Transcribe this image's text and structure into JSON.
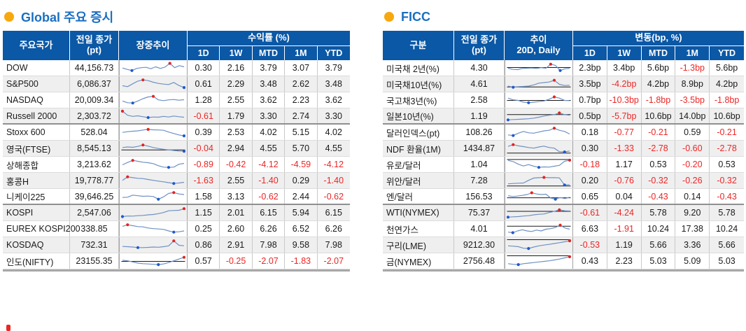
{
  "colors": {
    "header_bg": "#0a58a6",
    "title": "#1a6fc0",
    "bullet": "#f7a80c",
    "negative": "#ee2525",
    "spark_line": "#6e91c3",
    "spark_max_dot": "#e02424",
    "spark_min_dot": "#1f58d0",
    "spark_baseline": "#1a1a1a"
  },
  "footnote_mark": "",
  "sections": [
    {
      "id": "global",
      "title": "Global 주요 증시",
      "table": {
        "col_headers": {
          "label": "주요국가",
          "close": "전일 종가\n(pt)",
          "trend": "장중추이",
          "group": "수익률 (%)",
          "periods": [
            "1D",
            "1W",
            "MTD",
            "1M",
            "YTD"
          ]
        },
        "separator_after": [
          3,
          8
        ],
        "rows": [
          {
            "label": "DOW",
            "close": "44,156.73",
            "baseline": null,
            "spark": [
              52,
              40,
              30,
              48,
              55,
              58,
              46,
              62,
              48,
              60,
              92,
              55,
              72,
              62
            ],
            "values": [
              "0.30",
              "2.16",
              "3.79",
              "3.07",
              "3.79"
            ]
          },
          {
            "label": "S&P500",
            "close": "6,086.37",
            "baseline": null,
            "spark": [
              38,
              30,
              55,
              78,
              88,
              82,
              68,
              58,
              52,
              48,
              66,
              40,
              22
            ],
            "values": [
              "0.61",
              "2.29",
              "3.48",
              "2.62",
              "3.48"
            ]
          },
          {
            "label": "NASDAQ",
            "close": "20,009.34",
            "baseline": null,
            "spark": [
              45,
              30,
              28,
              45,
              65,
              80,
              85,
              55,
              48,
              55,
              58,
              52,
              56
            ],
            "values": [
              "1.28",
              "2.55",
              "3.62",
              "2.23",
              "3.62"
            ]
          },
          {
            "label": "Russell 2000",
            "close": "2,303.72",
            "baseline": null,
            "spark": [
              90,
              55,
              45,
              50,
              42,
              35,
              40,
              38,
              45,
              40,
              48,
              42,
              38
            ],
            "values": [
              "-0.61",
              "1.79",
              "3.30",
              "2.74",
              "3.30"
            ]
          },
          {
            "label": "Stoxx 600",
            "close": "528.04",
            "baseline": null,
            "spark": [
              52,
              58,
              62,
              65,
              72,
              78,
              74,
              73,
              70,
              55,
              42,
              30,
              22
            ],
            "values": [
              "0.39",
              "2.53",
              "4.02",
              "5.15",
              "4.02"
            ]
          },
          {
            "label": "영국(FTSE)",
            "close": "8,545.13",
            "baseline": 0.58,
            "spark": [
              60,
              65,
              62,
              70,
              82,
              72,
              60,
              52,
              45,
              40,
              35,
              30,
              28
            ],
            "values": [
              "-0.04",
              "2.94",
              "4.55",
              "5.70",
              "4.55"
            ]
          },
          {
            "label": "상해종합",
            "close": "3,213.62",
            "baseline": null,
            "spark": [
              50,
              70,
              88,
              80,
              72,
              68,
              60,
              42,
              30,
              28,
              30,
              55,
              62
            ],
            "values": [
              "-0.89",
              "-0.42",
              "-4.12",
              "-4.59",
              "-4.12"
            ]
          },
          {
            "label": "홍콩H",
            "close": "19,778.77",
            "baseline": null,
            "spark": [
              55,
              85,
              78,
              72,
              70,
              62,
              55,
              48,
              42,
              35,
              28,
              32,
              38
            ],
            "values": [
              "-1.63",
              "2.55",
              "-1.40",
              "0.29",
              "-1.40"
            ]
          },
          {
            "label": "니케이225",
            "close": "39,646.25",
            "baseline": null,
            "spark": [
              40,
              42,
              60,
              55,
              50,
              52,
              48,
              25,
              45,
              75,
              82,
              70,
              65
            ],
            "values": [
              "1.58",
              "3.13",
              "-0.62",
              "2.44",
              "-0.62"
            ]
          },
          {
            "label": "KOSPI",
            "close": "2,547.06",
            "baseline": null,
            "spark": [
              20,
              25,
              24,
              28,
              30,
              35,
              38,
              45,
              55,
              70,
              72,
              74,
              88
            ],
            "values": [
              "1.15",
              "2.01",
              "6.15",
              "5.94",
              "6.15"
            ]
          },
          {
            "label": "EUREX KOSPI200",
            "close": "338.85",
            "baseline": null,
            "spark": [
              75,
              88,
              80,
              72,
              70,
              60,
              55,
              52,
              48,
              35,
              25,
              28,
              35
            ],
            "values": [
              "0.25",
              "2.60",
              "6.26",
              "6.52",
              "6.26"
            ]
          },
          {
            "label": "KOSDAQ",
            "close": "732.31",
            "baseline": null,
            "spark": [
              40,
              38,
              35,
              30,
              30,
              32,
              35,
              33,
              38,
              45,
              88,
              50,
              46
            ],
            "values": [
              "0.86",
              "2.91",
              "7.98",
              "9.58",
              "7.98"
            ]
          },
          {
            "label": "인도(NIFTY)",
            "close": "23155.35",
            "baseline": 0.5,
            "spark": [
              60,
              55,
              45,
              35,
              30,
              28,
              25,
              22,
              28,
              40,
              55,
              70,
              85
            ],
            "values": [
              "0.57",
              "-0.25",
              "-2.07",
              "-1.83",
              "-2.07"
            ]
          }
        ]
      }
    },
    {
      "id": "ficc",
      "title": "FICC",
      "table": {
        "col_headers": {
          "label": "구분",
          "close": "전일 종가\n(pt)",
          "trend": "추이\n20D, Daily",
          "group": "변동(bp, %)",
          "periods": [
            "1D",
            "1W",
            "MTD",
            "1M",
            "YTD"
          ]
        },
        "separator_after": [
          3,
          8
        ],
        "rows": [
          {
            "label": "미국채 2년(%)",
            "close": "4.30",
            "baseline": 0.45,
            "spark": [
              50,
              40,
              38,
              48,
              50,
              52,
              48,
              55,
              50,
              85,
              75,
              30,
              45,
              48
            ],
            "values": [
              "2.3bp",
              "3.4bp",
              "5.6bp",
              "-1.3bp",
              "5.6bp"
            ]
          },
          {
            "label": "미국채10년(%)",
            "close": "4.61",
            "baseline": 0.68,
            "spark": [
              35,
              25,
              30,
              32,
              35,
              45,
              60,
              65,
              70,
              85,
              50,
              40,
              42
            ],
            "values": [
              "3.5bp",
              "-4.2bp",
              "4.2bp",
              "8.9bp",
              "4.2bp"
            ]
          },
          {
            "label": "국고채3년(%)",
            "close": "2.58",
            "baseline": 0.5,
            "spark": [
              70,
              55,
              50,
              35,
              30,
              35,
              40,
              45,
              60,
              80,
              70,
              50,
              48
            ],
            "values": [
              "0.7bp",
              "-10.3bp",
              "-1.8bp",
              "-3.5bp",
              "-1.8bp"
            ]
          },
          {
            "label": "일본10년(%)",
            "close": "1.19",
            "baseline": 0.42,
            "spark": [
              15,
              18,
              20,
              22,
              25,
              30,
              38,
              48,
              55,
              60,
              75,
              60,
              55
            ],
            "values": [
              "0.5bp",
              "-5.7bp",
              "10.6bp",
              "14.0bp",
              "10.6bp"
            ]
          },
          {
            "label": "달러인덱스(pt)",
            "close": "108.26",
            "baseline": null,
            "spark": [
              30,
              25,
              45,
              60,
              48,
              45,
              55,
              65,
              70,
              88,
              70,
              60,
              38
            ],
            "values": [
              "0.18",
              "-0.77",
              "-0.21",
              "0.59",
              "-0.21"
            ]
          },
          {
            "label": "NDF 환율(1M)",
            "close": "1434.87",
            "baseline": 0.8,
            "spark": [
              70,
              85,
              75,
              68,
              60,
              55,
              65,
              72,
              60,
              55,
              25,
              22,
              30
            ],
            "values": [
              "0.30",
              "-1.33",
              "-2.78",
              "-0.60",
              "-2.78"
            ]
          },
          {
            "label": "유로/달러",
            "close": "1.04",
            "baseline": 0.14,
            "spark": [
              88,
              78,
              55,
              40,
              52,
              38,
              28,
              32,
              30,
              38,
              45,
              80,
              90
            ],
            "values": [
              "-0.18",
              "1.17",
              "0.53",
              "-0.20",
              "0.53"
            ]
          },
          {
            "label": "위안/달러",
            "close": "7.28",
            "baseline": 0.85,
            "spark": [
              25,
              28,
              30,
              32,
              55,
              75,
              78,
              80,
              78,
              78,
              76,
              15,
              18
            ],
            "values": [
              "0.20",
              "-0.76",
              "-0.32",
              "-0.26",
              "-0.32"
            ]
          },
          {
            "label": "엔/달러",
            "close": "156.53",
            "baseline": 0.6,
            "spark": [
              55,
              48,
              52,
              58,
              65,
              80,
              70,
              65,
              68,
              35,
              25,
              40,
              30,
              42
            ],
            "values": [
              "0.65",
              "0.04",
              "-0.43",
              "0.14",
              "-0.43"
            ]
          },
          {
            "label": "WTI(NYMEX)",
            "close": "75.37",
            "baseline": 0.38,
            "spark": [
              15,
              18,
              20,
              25,
              28,
              35,
              40,
              42,
              55,
              65,
              78,
              70,
              68
            ],
            "values": [
              "-0.61",
              "-4.24",
              "5.78",
              "9.20",
              "5.78"
            ]
          },
          {
            "label": "천연가스",
            "close": "4.01",
            "baseline": 0.3,
            "spark": [
              25,
              20,
              35,
              45,
              35,
              30,
              42,
              35,
              50,
              55,
              65,
              85,
              60,
              50
            ],
            "values": [
              "6.63",
              "-1.91",
              "10.24",
              "17.38",
              "10.24"
            ]
          },
          {
            "label": "구리(LME)",
            "close": "9212.30",
            "baseline": 0.12,
            "spark": [
              45,
              42,
              38,
              25,
              22,
              35,
              45,
              52,
              58,
              65,
              72,
              80,
              88
            ],
            "values": [
              "-0.53",
              "1.19",
              "5.66",
              "3.36",
              "5.66"
            ]
          },
          {
            "label": "금(NYMEX)",
            "close": "2756.48",
            "baseline": 0.12,
            "spark": [
              30,
              25,
              22,
              30,
              35,
              40,
              45,
              50,
              55,
              62,
              70,
              80,
              90
            ],
            "values": [
              "0.43",
              "2.23",
              "5.03",
              "5.09",
              "5.03"
            ]
          }
        ]
      }
    }
  ]
}
